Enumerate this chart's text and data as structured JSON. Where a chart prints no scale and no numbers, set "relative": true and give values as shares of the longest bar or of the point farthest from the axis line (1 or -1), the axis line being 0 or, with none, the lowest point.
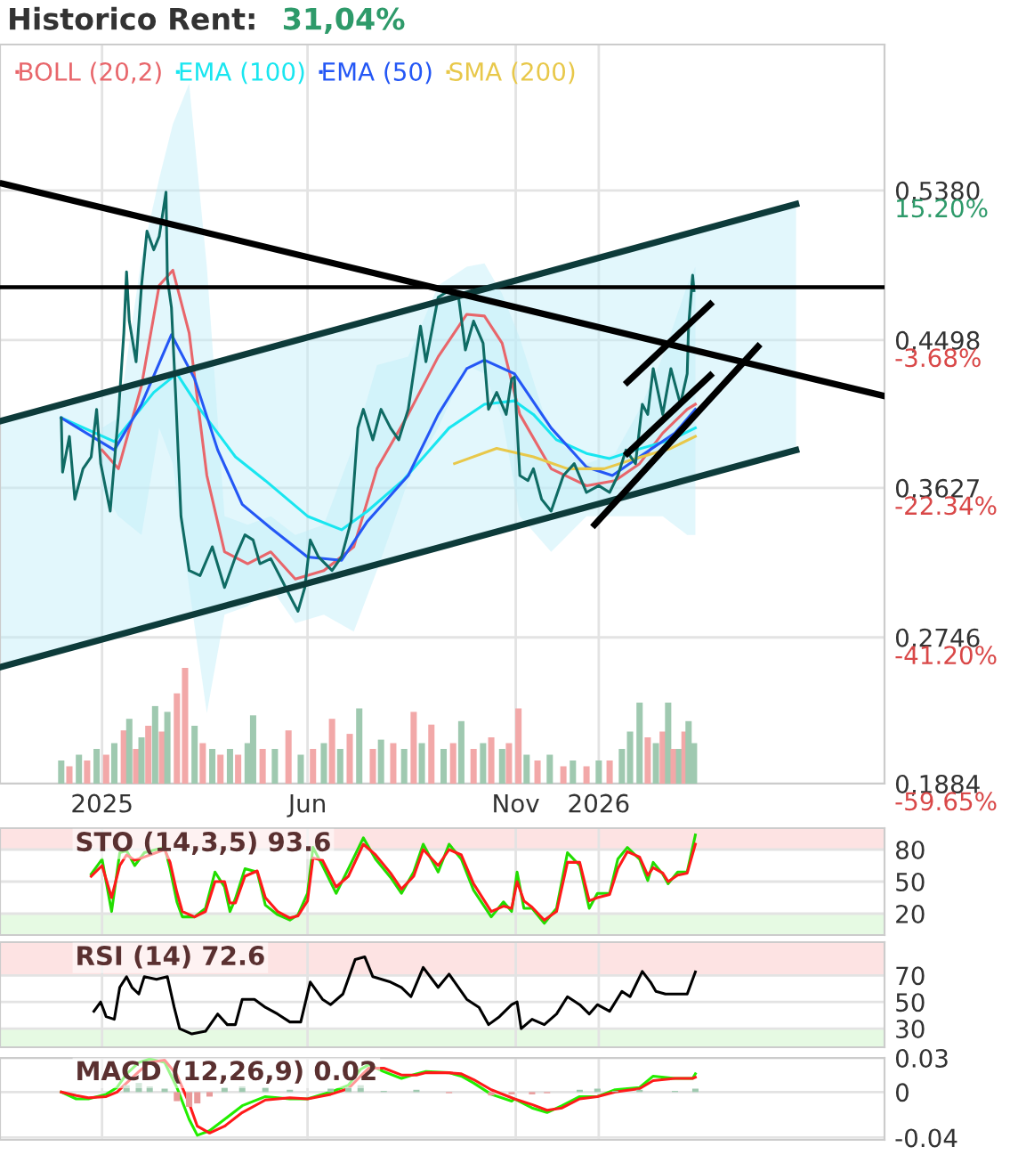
{
  "chart_data": [
    {
      "type": "line",
      "title": "Historico Rent:",
      "subtitle": "31,04%",
      "xlim": [
        "2024-10-18",
        "2026-07-30"
      ],
      "xticks": [
        {
          "value": "2025-01-01",
          "label": "2025"
        },
        {
          "value": "2025-06-01",
          "label": "Jun"
        },
        {
          "value": "2025-11-01",
          "label": "Nov"
        },
        {
          "value": "2026-01-01",
          "label": "2026"
        }
      ],
      "ylim": [
        0.1884,
        0.624
      ],
      "yticks": [
        {
          "value": 0.538,
          "label": "0,5380"
        },
        {
          "value": 0.4498,
          "label": "0,4498"
        },
        {
          "value": 0.3627,
          "label": "0,3627"
        },
        {
          "value": 0.2746,
          "label": "0,2746"
        },
        {
          "value": 0.1884,
          "label": "0,1884"
        }
      ],
      "y2lim": [
        -59.66,
        33.62
      ],
      "y2ticks": [
        {
          "value": 15.2,
          "label": "15.20%"
        },
        {
          "value": -3.68,
          "label": "-3.68%"
        },
        {
          "value": -22.34,
          "label": "-22.34%"
        },
        {
          "value": -41.2,
          "label": "-41.20%"
        },
        {
          "value": -59.65,
          "label": "-59.65%"
        }
      ],
      "grid": true,
      "legend": "top left",
      "ref_lines": [
        {
          "axis": "y",
          "value": 0.481,
          "color": "#000000"
        }
      ],
      "series": [
        {
          "type": "line",
          "color": "#0d3b3a",
          "x": [
            "2024-10-18",
            "2026-05-26"
          ],
          "values": [
            0.402,
            0.53
          ],
          "lower": [
            0.257,
            0.385
          ],
          "upper": [
            0.402,
            0.53
          ]
        },
        {
          "type": "line",
          "color": "#0d3b3a",
          "x": [
            "2024-10-18",
            "2026-05-26"
          ],
          "values": [
            0.257,
            0.385
          ]
        },
        {
          "type": "line",
          "name": "BOLL (20,2)",
          "color": "#e8666b",
          "x": [
            "2025-01-01",
            "2025-01-13",
            "2025-01-30",
            "2025-02-12",
            "2025-02-22",
            "2025-03-06",
            "2025-03-19",
            "2025-04-01",
            "2025-04-18",
            "2025-05-05",
            "2025-05-23",
            "2025-06-13",
            "2025-07-05",
            "2025-07-22",
            "2025-08-14",
            "2025-09-05",
            "2025-09-26",
            "2025-10-09",
            "2025-10-22",
            "2025-11-04",
            "2025-11-27",
            "2025-12-23",
            "2026-01-13",
            "2026-01-31",
            "2026-02-17",
            "2026-03-07",
            "2026-03-13"
          ],
          "values": [
            0.385,
            0.374,
            0.423,
            0.482,
            0.491,
            0.454,
            0.37,
            0.325,
            0.318,
            0.325,
            0.309,
            0.314,
            0.328,
            0.374,
            0.406,
            0.44,
            0.465,
            0.464,
            0.448,
            0.406,
            0.374,
            0.364,
            0.367,
            0.377,
            0.395,
            0.409,
            0.412
          ],
          "upper": [
            0.398,
            0.404,
            0.498,
            0.545,
            0.577,
            0.601,
            0.493,
            0.346,
            0.341,
            0.346,
            0.335,
            0.341,
            0.388,
            0.435,
            0.44,
            0.482,
            0.493,
            0.495,
            0.477,
            0.451,
            0.393,
            0.377,
            0.383,
            0.409,
            0.44,
            0.482,
            0.493
          ],
          "lower": [
            0.362,
            0.346,
            0.335,
            0.398,
            0.377,
            0.304,
            0.23,
            0.288,
            0.293,
            0.304,
            0.283,
            0.288,
            0.278,
            0.314,
            0.367,
            0.398,
            0.435,
            0.43,
            0.404,
            0.346,
            0.325,
            0.346,
            0.346,
            0.346,
            0.346,
            0.335,
            0.335
          ]
        },
        {
          "type": "line",
          "name": "EMA (100)",
          "color": "#19e6f0",
          "x": [
            "2024-12-02",
            "2025-01-10",
            "2025-02-08",
            "2025-02-25",
            "2025-03-14",
            "2025-04-09",
            "2025-05-01",
            "2025-06-01",
            "2025-06-26",
            "2025-07-15",
            "2025-08-10",
            "2025-09-13",
            "2025-10-09",
            "2025-10-31",
            "2025-11-14",
            "2025-12-01",
            "2025-12-23",
            "2026-01-09",
            "2026-01-28",
            "2026-02-23",
            "2026-03-13"
          ],
          "values": [
            0.404,
            0.39,
            0.419,
            0.43,
            0.409,
            0.381,
            0.367,
            0.346,
            0.338,
            0.349,
            0.367,
            0.398,
            0.412,
            0.414,
            0.406,
            0.391,
            0.383,
            0.38,
            0.385,
            0.391,
            0.398
          ]
        },
        {
          "type": "line",
          "name": "EMA (50)",
          "color": "#2457f5",
          "x": [
            "2024-12-02",
            "2025-01-10",
            "2025-01-30",
            "2025-02-21",
            "2025-03-10",
            "2025-03-27",
            "2025-04-14",
            "2025-05-05",
            "2025-06-01",
            "2025-06-26",
            "2025-07-15",
            "2025-08-14",
            "2025-09-05",
            "2025-09-26",
            "2025-10-09",
            "2025-10-31",
            "2025-11-27",
            "2025-12-23",
            "2026-01-11",
            "2026-01-31",
            "2026-02-26",
            "2026-03-13"
          ],
          "values": [
            0.404,
            0.385,
            0.412,
            0.453,
            0.427,
            0.385,
            0.353,
            0.339,
            0.322,
            0.32,
            0.343,
            0.37,
            0.406,
            0.433,
            0.438,
            0.43,
            0.398,
            0.375,
            0.37,
            0.381,
            0.395,
            0.409
          ]
        },
        {
          "type": "line",
          "name": "SMA (200)",
          "color": "#e8c84a",
          "x": [
            "2025-09-17",
            "2025-10-18",
            "2025-11-14",
            "2025-12-09",
            "2026-01-05",
            "2026-01-28",
            "2026-02-23",
            "2026-03-13"
          ],
          "values": [
            0.377,
            0.386,
            0.381,
            0.374,
            0.374,
            0.38,
            0.386,
            0.393
          ]
        },
        {
          "type": "line",
          "color": "#0f6b64",
          "x": [
            "2024-12-02",
            "2024-12-03",
            "2024-12-08",
            "2024-12-12",
            "2024-12-18",
            "2024-12-24",
            "2024-12-28",
            "2024-12-31",
            "2025-01-07",
            "2025-01-13",
            "2025-01-17",
            "2025-01-19",
            "2025-01-21",
            "2025-01-26",
            "2025-01-30",
            "2025-02-03",
            "2025-02-08",
            "2025-02-12",
            "2025-02-17",
            "2025-02-18",
            "2025-02-21",
            "2025-02-24",
            "2025-02-28",
            "2025-03-06",
            "2025-03-14",
            "2025-03-23",
            "2025-04-01",
            "2025-04-09",
            "2025-04-16",
            "2025-04-22",
            "2025-04-27",
            "2025-05-05",
            "2025-05-14",
            "2025-05-21",
            "2025-05-25",
            "2025-05-30",
            "2025-06-03",
            "2025-06-09",
            "2025-06-19",
            "2025-06-26",
            "2025-07-03",
            "2025-07-08",
            "2025-07-12",
            "2025-07-19",
            "2025-07-25",
            "2025-08-01",
            "2025-08-07",
            "2025-08-14",
            "2025-08-23",
            "2025-08-27",
            "2025-09-05",
            "2025-09-13",
            "2025-09-20",
            "2025-09-25",
            "2025-10-01",
            "2025-10-08",
            "2025-10-12",
            "2025-10-18",
            "2025-10-25",
            "2025-10-29",
            "2025-10-31",
            "2025-11-04",
            "2025-11-10",
            "2025-11-14",
            "2025-11-20",
            "2025-11-27",
            "2025-12-06",
            "2025-12-14",
            "2025-12-23",
            "2026-01-01",
            "2026-01-09",
            "2026-01-15",
            "2026-01-21",
            "2026-01-28",
            "2026-02-02",
            "2026-02-06",
            "2026-02-10",
            "2026-02-17",
            "2026-02-23",
            "2026-03-02",
            "2026-03-07",
            "2026-03-08",
            "2026-03-11",
            "2026-03-12"
          ],
          "values": [
            0.404,
            0.372,
            0.393,
            0.356,
            0.374,
            0.381,
            0.409,
            0.377,
            0.349,
            0.406,
            0.454,
            0.49,
            0.461,
            0.437,
            0.482,
            0.514,
            0.503,
            0.511,
            0.537,
            0.486,
            0.469,
            0.419,
            0.346,
            0.314,
            0.311,
            0.328,
            0.304,
            0.322,
            0.335,
            0.332,
            0.318,
            0.321,
            0.307,
            0.296,
            0.29,
            0.304,
            0.332,
            0.322,
            0.314,
            0.322,
            0.343,
            0.398,
            0.409,
            0.391,
            0.409,
            0.398,
            0.391,
            0.409,
            0.458,
            0.437,
            0.475,
            0.479,
            0.475,
            0.444,
            0.461,
            0.448,
            0.409,
            0.419,
            0.406,
            0.427,
            0.428,
            0.37,
            0.367,
            0.374,
            0.356,
            0.349,
            0.37,
            0.377,
            0.36,
            0.364,
            0.36,
            0.37,
            0.385,
            0.377,
            0.412,
            0.406,
            0.433,
            0.406,
            0.433,
            0.412,
            0.43,
            0.458,
            0.488,
            0.479
          ]
        },
        {
          "type": "line",
          "color": "#000000",
          "x": [
            "2024-10-20",
            "2026-07-29"
          ],
          "values": [
            0.542,
            0.417
          ]
        },
        {
          "type": "line",
          "color": "#000000",
          "x": [
            "2026-01-22",
            "2026-03-24"
          ],
          "values": [
            0.425,
            0.471
          ]
        },
        {
          "type": "line",
          "color": "#000000",
          "x": [
            "2026-01-22",
            "2026-03-24"
          ],
          "values": [
            0.383,
            0.429
          ]
        },
        {
          "type": "line",
          "color": "#000000",
          "x": [
            "2025-12-29",
            "2026-04-28"
          ],
          "values": [
            0.341,
            0.446
          ]
        }
      ]
    },
    {
      "type": "bar",
      "relative": true,
      "xlim": [
        "2024-10-18",
        "2026-07-30"
      ],
      "x": [
        "2024-12-02",
        "2024-12-08",
        "2024-12-15",
        "2024-12-21",
        "2024-12-28",
        "2025-01-04",
        "2025-01-10",
        "2025-01-17",
        "2025-01-21",
        "2025-01-26",
        "2025-01-30",
        "2025-02-04",
        "2025-02-09",
        "2025-02-14",
        "2025-02-18",
        "2025-02-25",
        "2025-03-03",
        "2025-03-10",
        "2025-03-16",
        "2025-03-23",
        "2025-03-29",
        "2025-04-05",
        "2025-04-11",
        "2025-04-18",
        "2025-04-22",
        "2025-04-29",
        "2025-05-08",
        "2025-05-18",
        "2025-05-27",
        "2025-06-05",
        "2025-06-13",
        "2025-06-19",
        "2025-06-25",
        "2025-07-02",
        "2025-07-09",
        "2025-07-19",
        "2025-07-25",
        "2025-08-03",
        "2025-08-11",
        "2025-08-18",
        "2025-08-24",
        "2025-08-31",
        "2025-09-09",
        "2025-09-16",
        "2025-09-22",
        "2025-10-01",
        "2025-10-08",
        "2025-10-14",
        "2025-10-22",
        "2025-10-27",
        "2025-11-03",
        "2025-11-09",
        "2025-11-17",
        "2025-11-26",
        "2025-12-06",
        "2025-12-13",
        "2025-12-23",
        "2026-01-01",
        "2026-01-09",
        "2026-01-18",
        "2026-01-24",
        "2026-01-31",
        "2026-02-06",
        "2026-02-12",
        "2026-02-17",
        "2026-02-21",
        "2026-02-25",
        "2026-03-01",
        "2026-03-05",
        "2026-03-08",
        "2026-03-12"
      ],
      "values": [
        0.2,
        0.15,
        0.25,
        0.2,
        0.3,
        0.25,
        0.35,
        0.46,
        0.56,
        0.3,
        0.4,
        0.5,
        0.67,
        0.45,
        0.62,
        0.78,
        1.0,
        0.5,
        0.35,
        0.3,
        0.25,
        0.3,
        0.25,
        0.35,
        0.59,
        0.3,
        0.3,
        0.46,
        0.25,
        0.3,
        0.35,
        0.56,
        0.3,
        0.43,
        0.65,
        0.3,
        0.38,
        0.35,
        0.3,
        0.62,
        0.35,
        0.51,
        0.3,
        0.35,
        0.54,
        0.3,
        0.35,
        0.4,
        0.3,
        0.35,
        0.65,
        0.25,
        0.2,
        0.25,
        0.15,
        0.2,
        0.15,
        0.2,
        0.2,
        0.3,
        0.45,
        0.7,
        0.4,
        0.35,
        0.45,
        0.7,
        0.3,
        0.3,
        0.45,
        0.54,
        0.35
      ],
      "colors": [
        "#9fc9b0",
        "#f2a8a8",
        "#9fc9b0",
        "#f2a8a8",
        "#9fc9b0",
        "#f2a8a8",
        "#9fc9b0",
        "#f2a8a8",
        "#9fc9b0",
        "#f2a8a8",
        "#9fc9b0",
        "#f2a8a8",
        "#9fc9b0",
        "#f2a8a8",
        "#9fc9b0",
        "#f2a8a8",
        "#f2a8a8",
        "#9fc9b0",
        "#f2a8a8",
        "#9fc9b0",
        "#f2a8a8",
        "#9fc9b0",
        "#f2a8a8",
        "#9fc9b0",
        "#9fc9b0",
        "#f2a8a8",
        "#9fc9b0",
        "#f2a8a8",
        "#9fc9b0",
        "#f2a8a8",
        "#9fc9b0",
        "#f2a8a8",
        "#9fc9b0",
        "#f2a8a8",
        "#9fc9b0",
        "#f2a8a8",
        "#9fc9b0",
        "#f2a8a8",
        "#9fc9b0",
        "#f2a8a8",
        "#9fc9b0",
        "#f2a8a8",
        "#9fc9b0",
        "#f2a8a8",
        "#9fc9b0",
        "#f2a8a8",
        "#9fc9b0",
        "#f2a8a8",
        "#9fc9b0",
        "#f2a8a8",
        "#f2a8a8",
        "#9fc9b0",
        "#f2a8a8",
        "#9fc9b0",
        "#f2a8a8",
        "#9fc9b0",
        "#f2a8a8",
        "#9fc9b0",
        "#f2a8a8",
        "#9fc9b0",
        "#9fc9b0",
        "#9fc9b0",
        "#f2a8a8",
        "#9fc9b0",
        "#f2a8a8",
        "#9fc9b0",
        "#f2a8a8",
        "#9fc9b0",
        "#f2a8a8",
        "#9fc9b0",
        "#9fc9b0"
      ]
    },
    {
      "type": "line",
      "title": "STO (14,3,5) 93.6",
      "xlim": [
        "2024-10-18",
        "2026-07-30"
      ],
      "xticks": [
        {
          "value": "2025-01-01",
          "label": null
        },
        {
          "value": "2025-06-01",
          "label": null
        },
        {
          "value": "2025-11-01",
          "label": null
        },
        {
          "value": "2026-01-01",
          "label": null
        }
      ],
      "ylim": [
        0,
        100
      ],
      "yticks": [
        80,
        50,
        20
      ],
      "grid": true,
      "tick_labels": "y",
      "bands": [
        {
          "axis": "y",
          "from": 80,
          "to": 100,
          "color": "#fde3e3"
        },
        {
          "axis": "y",
          "from": 0,
          "to": 20,
          "color": "#e6fae3"
        }
      ],
      "x": [
        "2024-12-24",
        "2025-01-01",
        "2025-01-08",
        "2025-01-14",
        "2025-01-19",
        "2025-01-25",
        "2025-02-01",
        "2025-02-16",
        "2025-02-20",
        "2025-02-25",
        "2025-03-01",
        "2025-03-10",
        "2025-03-18",
        "2025-03-25",
        "2025-04-01",
        "2025-04-05",
        "2025-04-09",
        "2025-04-16",
        "2025-04-25",
        "2025-05-01",
        "2025-05-10",
        "2025-05-19",
        "2025-05-25",
        "2025-06-01",
        "2025-06-05",
        "2025-06-12",
        "2025-06-22",
        "2025-07-01",
        "2025-07-12",
        "2025-07-21",
        "2025-08-01",
        "2025-08-09",
        "2025-08-18",
        "2025-08-25",
        "2025-09-05",
        "2025-09-13",
        "2025-09-22",
        "2025-10-01",
        "2025-10-14",
        "2025-10-23",
        "2025-10-29",
        "2025-11-02",
        "2025-11-07",
        "2025-11-13",
        "2025-11-22",
        "2025-12-01",
        "2025-12-09",
        "2025-12-18",
        "2025-12-25",
        "2025-12-31",
        "2026-01-09",
        "2026-01-15",
        "2026-01-22",
        "2026-01-31",
        "2026-02-06",
        "2026-02-10",
        "2026-02-17",
        "2026-02-21",
        "2026-02-28",
        "2026-03-07",
        "2026-03-13"
      ],
      "series": [
        {
          "color": "#22dd00",
          "values": [
            57,
            71,
            22,
            77,
            79,
            65,
            77,
            82,
            62,
            31,
            17,
            17,
            25,
            59,
            45,
            22,
            34,
            62,
            59,
            28,
            19,
            14,
            19,
            39,
            82,
            65,
            39,
            62,
            91,
            71,
            54,
            39,
            59,
            85,
            59,
            85,
            71,
            42,
            17,
            31,
            22,
            59,
            25,
            25,
            11,
            25,
            77,
            65,
            25,
            39,
            39,
            71,
            82,
            71,
            51,
            68,
            57,
            48,
            59,
            59,
            93.6
          ]
        },
        {
          "color": "#ff1a1a",
          "values": [
            55,
            65,
            35,
            65,
            75,
            70,
            73,
            80,
            68,
            40,
            22,
            17,
            22,
            50,
            50,
            30,
            30,
            55,
            60,
            35,
            22,
            16,
            18,
            32,
            72,
            70,
            45,
            55,
            85,
            75,
            58,
            43,
            55,
            80,
            65,
            80,
            75,
            48,
            22,
            27,
            25,
            50,
            32,
            26,
            14,
            22,
            68,
            68,
            32,
            35,
            38,
            62,
            78,
            73,
            56,
            63,
            58,
            50,
            56,
            58,
            85
          ]
        }
      ]
    },
    {
      "type": "line",
      "title": "RSI (14) 72.6",
      "xlim": [
        "2024-10-18",
        "2026-07-30"
      ],
      "xticks": [
        {
          "value": "2025-01-01",
          "label": null
        },
        {
          "value": "2025-06-01",
          "label": null
        },
        {
          "value": "2025-11-01",
          "label": null
        },
        {
          "value": "2026-01-01",
          "label": null
        }
      ],
      "ylim": [
        16,
        95
      ],
      "yticks": [
        70,
        50,
        30
      ],
      "grid": true,
      "tick_labels": "y",
      "bands": [
        {
          "axis": "y",
          "from": 70,
          "to": 95,
          "color": "#fde3e3"
        },
        {
          "axis": "y",
          "from": 16,
          "to": 30,
          "color": "#e6fae3"
        }
      ],
      "x": [
        "2024-12-26",
        "2024-12-31",
        "2025-01-04",
        "2025-01-10",
        "2025-01-14",
        "2025-01-19",
        "2025-01-23",
        "2025-01-28",
        "2025-02-01",
        "2025-02-10",
        "2025-02-18",
        "2025-02-23",
        "2025-02-27",
        "2025-03-08",
        "2025-03-18",
        "2025-03-27",
        "2025-04-03",
        "2025-04-09",
        "2025-04-14",
        "2025-04-23",
        "2025-05-01",
        "2025-05-10",
        "2025-05-19",
        "2025-05-27",
        "2025-06-03",
        "2025-06-12",
        "2025-06-18",
        "2025-06-27",
        "2025-07-06",
        "2025-07-13",
        "2025-07-19",
        "2025-08-01",
        "2025-08-09",
        "2025-08-16",
        "2025-08-25",
        "2025-09-05",
        "2025-09-13",
        "2025-09-26",
        "2025-10-05",
        "2025-10-12",
        "2025-10-20",
        "2025-10-29",
        "2025-11-02",
        "2025-11-05",
        "2025-11-13",
        "2025-11-22",
        "2025-12-01",
        "2025-12-09",
        "2025-12-18",
        "2025-12-25",
        "2025-12-31",
        "2026-01-09",
        "2026-01-18",
        "2026-01-24",
        "2026-02-02",
        "2026-02-08",
        "2026-02-12",
        "2026-02-19",
        "2026-02-26",
        "2026-03-07",
        "2026-03-13"
      ],
      "series": [
        {
          "color": "#000000",
          "values": [
            43,
            50,
            39,
            37,
            61,
            69,
            61,
            56,
            69,
            67,
            69,
            46,
            30,
            26,
            28,
            41,
            33,
            33,
            52,
            52,
            46,
            41,
            35,
            35,
            65,
            52,
            48,
            56,
            82,
            84,
            69,
            65,
            61,
            54,
            76,
            61,
            71,
            52,
            46,
            33,
            39,
            48,
            50,
            30,
            37,
            33,
            41,
            54,
            48,
            41,
            48,
            43,
            58,
            54,
            73,
            65,
            58,
            56,
            56,
            56,
            72.6
          ]
        }
      ]
    },
    {
      "type": "line",
      "title": "MACD (12,26,9) 0.02",
      "xlim": [
        "2024-10-18",
        "2026-07-30"
      ],
      "xticks": [
        {
          "value": "2025-01-01",
          "label": null
        },
        {
          "value": "2025-06-01",
          "label": null
        },
        {
          "value": "2025-11-01",
          "label": null
        },
        {
          "value": "2026-01-01",
          "label": null
        }
      ],
      "ylim": [
        -0.042,
        0.03
      ],
      "yticks": [
        0.03,
        0,
        {
          "value": -0.04,
          "label": "-0.04"
        }
      ],
      "grid": true,
      "tick_labels": "y",
      "x": [
        "2024-12-02",
        "2024-12-13",
        "2024-12-22",
        "2025-01-04",
        "2025-01-12",
        "2025-01-19",
        "2025-01-28",
        "2025-02-05",
        "2025-02-16",
        "2025-02-25",
        "2025-03-06",
        "2025-03-12",
        "2025-03-21",
        "2025-04-01",
        "2025-04-14",
        "2025-05-01",
        "2025-05-19",
        "2025-06-01",
        "2025-06-18",
        "2025-07-01",
        "2025-07-10",
        "2025-07-16",
        "2025-07-27",
        "2025-08-09",
        "2025-08-20",
        "2025-08-27",
        "2025-09-13",
        "2025-09-22",
        "2025-10-01",
        "2025-10-14",
        "2025-10-29",
        "2025-10-31",
        "2025-11-13",
        "2025-11-24",
        "2025-12-05",
        "2025-12-18",
        "2025-12-31",
        "2026-01-13",
        "2026-01-31",
        "2026-02-10",
        "2026-02-26",
        "2026-03-11",
        "2026-03-13"
      ],
      "series": [
        {
          "type": "bar",
          "x": [
            "2025-01-19",
            "2025-01-28",
            "2025-02-05",
            "2025-02-16",
            "2025-02-25",
            "2025-03-06",
            "2025-03-12",
            "2025-03-21",
            "2025-04-01",
            "2025-04-14",
            "2025-05-01",
            "2025-05-19",
            "2025-06-18",
            "2025-07-01",
            "2025-07-10",
            "2025-07-27",
            "2025-08-20",
            "2025-09-13",
            "2025-10-14",
            "2025-10-29",
            "2025-11-13",
            "2025-11-24",
            "2025-12-18",
            "2025-12-31",
            "2026-01-13",
            "2026-01-31",
            "2026-02-26",
            "2026-03-13"
          ],
          "values": [
            0.006,
            0.008,
            0.005,
            0.003,
            -0.008,
            -0.013,
            -0.01,
            -0.004,
            0.004,
            0.005,
            0.004,
            0.002,
            0.003,
            0.004,
            0.006,
            0.001,
            0.002,
            -0.001,
            -0.003,
            -0.002,
            -0.002,
            -0.001,
            0.002,
            0.003,
            0.001,
            0.002,
            0.001,
            0.003
          ],
          "colors": [
            "#9fc9b0",
            "#9fc9b0",
            "#9fc9b0",
            "#9fc9b0",
            "#e89a9a",
            "#e89a9a",
            "#e89a9a",
            "#e89a9a",
            "#9fc9b0",
            "#9fc9b0",
            "#9fc9b0",
            "#9fc9b0",
            "#9fc9b0",
            "#9fc9b0",
            "#9fc9b0",
            "#9fc9b0",
            "#9fc9b0",
            "#e89a9a",
            "#e89a9a",
            "#e89a9a",
            "#e89a9a",
            "#e89a9a",
            "#9fc9b0",
            "#9fc9b0",
            "#9fc9b0",
            "#9fc9b0",
            "#9fc9b0",
            "#9fc9b0"
          ]
        },
        {
          "color": "#22ee00",
          "values": [
            0.0,
            -0.006,
            -0.006,
            -0.002,
            0.004,
            0.016,
            0.026,
            0.029,
            0.026,
            0.004,
            -0.024,
            -0.038,
            -0.034,
            -0.024,
            -0.012,
            -0.004,
            -0.006,
            -0.006,
            0.0,
            0.006,
            0.02,
            0.024,
            0.018,
            0.012,
            0.016,
            0.018,
            0.017,
            0.014,
            0.008,
            -0.002,
            -0.008,
            -0.006,
            -0.014,
            -0.018,
            -0.012,
            -0.004,
            -0.004,
            0.002,
            0.004,
            0.014,
            0.012,
            0.012,
            0.016
          ]
        },
        {
          "color": "#ff1a1a",
          "values": [
            0.0,
            -0.003,
            -0.005,
            -0.004,
            0.0,
            0.008,
            0.018,
            0.026,
            0.028,
            0.015,
            -0.01,
            -0.03,
            -0.036,
            -0.03,
            -0.018,
            -0.007,
            -0.005,
            -0.006,
            -0.002,
            0.003,
            0.014,
            0.021,
            0.021,
            0.015,
            0.015,
            0.017,
            0.017,
            0.016,
            0.011,
            0.002,
            -0.005,
            -0.006,
            -0.011,
            -0.016,
            -0.014,
            -0.006,
            -0.004,
            0.0,
            0.003,
            0.01,
            0.012,
            0.012,
            0.013
          ]
        }
      ]
    }
  ]
}
